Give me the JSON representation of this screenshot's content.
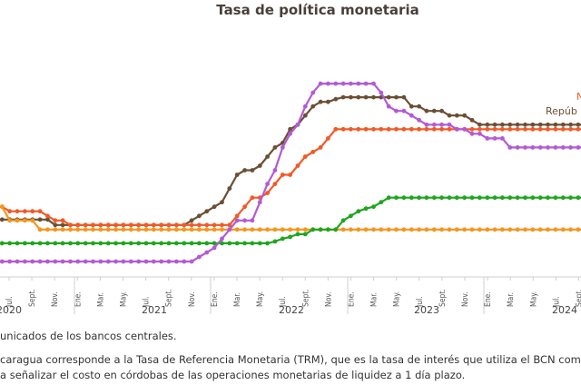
{
  "chart_data": {
    "type": "line",
    "title": "Tasa de política monetaria",
    "x_labels": [
      "Jul.",
      "Sept.",
      "Nov.",
      "Ene.",
      "Mar.",
      "May.",
      "Jul.",
      "Sept.",
      "Nov.",
      "Ene.",
      "Mar.",
      "May.",
      "Jul.",
      "Sept.",
      "Nov.",
      "Ene.",
      "Mar.",
      "May.",
      "Jul.",
      "Sept.",
      "Nov.",
      "Ene.",
      "Mar.",
      "May.",
      "Jul.",
      "Sept."
    ],
    "years": [
      "2020",
      "2021",
      "2022",
      "2023",
      "2024"
    ],
    "legend_labels": [
      "N",
      "Repúb"
    ],
    "series": [
      {
        "color": "#6b4f35",
        "values": [
          2.3,
          2.3,
          2.3,
          2.3,
          2.3,
          2.3,
          2.3,
          2.3,
          2.0,
          2.0,
          2.0,
          2.0,
          2.0,
          2.0,
          2.0,
          2.0,
          2.0,
          2.0,
          2.0,
          2.0,
          2.0,
          2.0,
          2.0,
          2.0,
          2.0,
          2.0,
          2.25,
          2.5,
          2.75,
          3.0,
          3.25,
          4.0,
          4.75,
          5.0,
          5.0,
          5.25,
          5.75,
          6.25,
          6.5,
          7.25,
          7.5,
          8.0,
          8.5,
          8.75,
          8.75,
          8.9,
          9.0,
          9.0,
          9.0,
          9.0,
          9.0,
          9.0,
          9.0,
          9.0,
          9.0,
          8.5,
          8.5,
          8.25,
          8.25,
          8.25,
          8.0,
          8.0,
          8.0,
          7.75,
          7.5,
          7.5,
          7.5,
          7.5,
          7.5,
          7.5,
          7.5,
          7.5,
          7.5,
          7.5,
          7.5,
          7.5,
          7.5,
          7.5,
          7.5,
          7.5,
          7.25,
          7.25
        ]
      },
      {
        "color": "#f05a28",
        "values": [
          3.0,
          3.0,
          2.75,
          2.75,
          2.75,
          2.75,
          2.75,
          2.5,
          2.25,
          2.25,
          2.0,
          2.0,
          2.0,
          2.0,
          2.0,
          2.0,
          2.0,
          2.0,
          2.0,
          2.0,
          2.0,
          2.0,
          2.0,
          2.0,
          2.0,
          2.0,
          2.0,
          2.0,
          2.0,
          2.0,
          2.0,
          2.0,
          2.5,
          3.0,
          3.5,
          3.5,
          3.75,
          4.25,
          4.75,
          4.75,
          5.25,
          5.75,
          6.0,
          6.25,
          6.75,
          7.25,
          7.25,
          7.25,
          7.25,
          7.25,
          7.25,
          7.25,
          7.25,
          7.25,
          7.25,
          7.25,
          7.25,
          7.25,
          7.25,
          7.25,
          7.25,
          7.25,
          7.25,
          7.25,
          7.25,
          7.25,
          7.25,
          7.25,
          7.25,
          7.25,
          7.25,
          7.25,
          7.25,
          7.25,
          7.25,
          7.25,
          7.25,
          7.25,
          7.25,
          7.25,
          7.25,
          7.25
        ]
      },
      {
        "color": "#f7941d",
        "values": [
          3.0,
          3.0,
          2.25,
          2.25,
          2.25,
          2.25,
          1.75,
          1.75,
          1.75,
          1.75,
          1.75,
          1.75,
          1.75,
          1.75,
          1.75,
          1.75,
          1.75,
          1.75,
          1.75,
          1.75,
          1.75,
          1.75,
          1.75,
          1.75,
          1.75,
          1.75,
          1.75,
          1.75,
          1.75,
          1.75,
          1.75,
          1.75,
          1.75,
          1.75,
          1.75,
          1.75,
          1.75,
          1.75,
          1.75,
          1.75,
          1.75,
          1.75,
          1.75,
          1.75,
          1.75,
          1.75,
          1.75,
          1.75,
          1.75,
          1.75,
          1.75,
          1.75,
          1.75,
          1.75,
          1.75,
          1.75,
          1.75,
          1.75,
          1.75,
          1.75,
          1.75,
          1.75,
          1.75,
          1.75,
          1.75,
          1.75,
          1.75,
          1.75,
          1.75,
          1.75,
          1.75,
          1.75,
          1.75,
          1.75,
          1.75,
          1.75,
          1.75,
          1.75,
          1.75,
          2.5,
          2.5,
          2.5
        ]
      },
      {
        "color": "#1fa51f",
        "values": [
          1.0,
          1.0,
          1.0,
          1.0,
          1.0,
          1.0,
          1.0,
          1.0,
          1.0,
          1.0,
          1.0,
          1.0,
          1.0,
          1.0,
          1.0,
          1.0,
          1.0,
          1.0,
          1.0,
          1.0,
          1.0,
          1.0,
          1.0,
          1.0,
          1.0,
          1.0,
          1.0,
          1.0,
          1.0,
          1.0,
          1.0,
          1.0,
          1.0,
          1.0,
          1.0,
          1.0,
          1.0,
          1.1,
          1.25,
          1.35,
          1.5,
          1.5,
          1.75,
          1.75,
          1.75,
          1.75,
          2.25,
          2.5,
          2.75,
          2.9,
          3.0,
          3.25,
          3.5,
          3.5,
          3.5,
          3.5,
          3.5,
          3.5,
          3.5,
          3.5,
          3.5,
          3.5,
          3.5,
          3.5,
          3.5,
          3.5,
          3.5,
          3.5,
          3.5,
          3.5,
          3.5,
          3.5,
          3.5,
          3.5,
          3.5,
          3.5,
          3.5,
          3.5,
          3.5,
          3.5,
          3.25,
          3.25
        ]
      },
      {
        "color": "#b35ad4",
        "values": [
          0.0,
          0.0,
          0.0,
          0.0,
          0.0,
          0.0,
          0.0,
          0.0,
          0.0,
          0.0,
          0.0,
          0.0,
          0.0,
          0.0,
          0.0,
          0.0,
          0.0,
          0.0,
          0.0,
          0.0,
          0.0,
          0.0,
          0.0,
          0.0,
          0.0,
          0.0,
          0.0,
          0.25,
          0.5,
          0.75,
          1.25,
          1.75,
          2.25,
          2.25,
          2.25,
          3.25,
          4.25,
          5.0,
          6.25,
          7.0,
          7.5,
          8.5,
          9.25,
          9.75,
          9.75,
          9.75,
          9.75,
          9.75,
          9.75,
          9.75,
          9.75,
          9.25,
          8.5,
          8.25,
          8.25,
          8.0,
          7.75,
          7.5,
          7.5,
          7.5,
          7.5,
          7.25,
          7.25,
          7.0,
          7.0,
          6.75,
          6.75,
          6.75,
          6.25,
          6.25,
          6.25,
          6.25,
          6.25,
          6.25,
          6.25,
          6.25,
          6.25,
          6.25,
          6.25,
          6.25,
          5.75,
          5.5
        ]
      }
    ],
    "notes": {
      "source_fragment": "unicados de los bancos centrales.",
      "note_line1": "caragua corresponde a la Tasa de Referencia Monetaria (TRM), que es la tasa de interés que utiliza el BCN como",
      "note_line2": "a señalizar el costo en córdobas de las operaciones monetarias de liquidez a 1 día plazo."
    },
    "colors": {
      "title": "#4a3f3a",
      "axis": "#cfcfcf"
    },
    "ylim": [
      0,
      10.5
    ]
  }
}
